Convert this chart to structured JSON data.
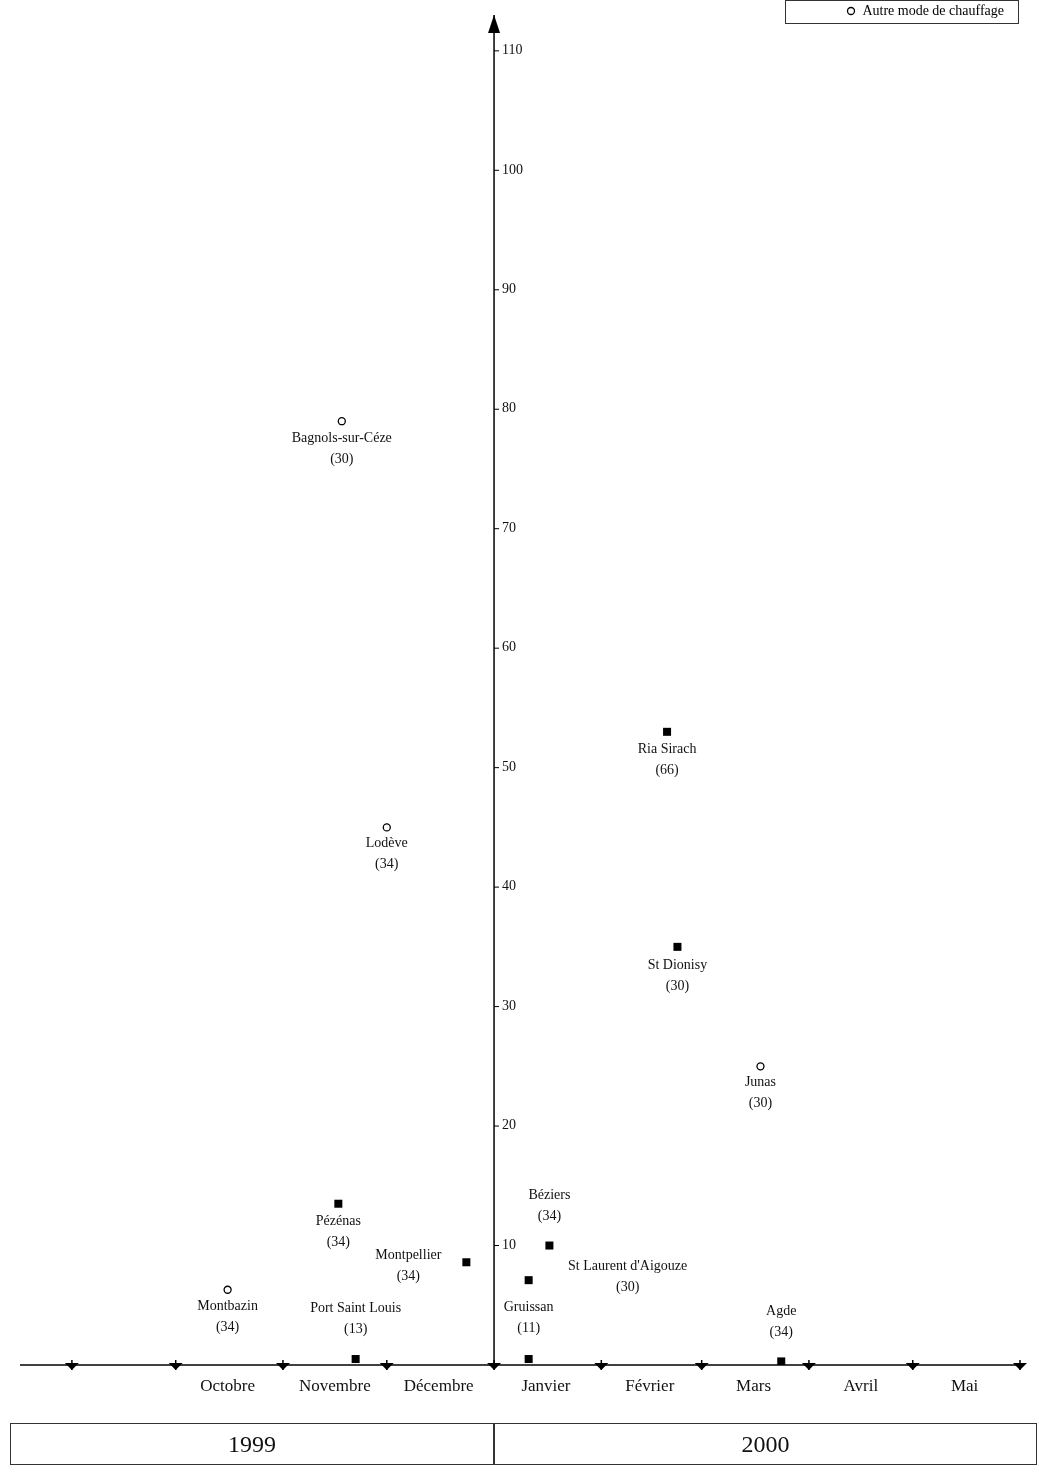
{
  "chart_data": {
    "type": "scatter",
    "xlim": [
      "1999-08-17",
      "2000-06-01"
    ],
    "xticks": [
      {
        "value": "1999-09-01",
        "label": null
      },
      {
        "value": "1999-10-01",
        "label": null
      },
      {
        "value": "1999-10-16",
        "label": "Octobre"
      },
      {
        "value": "1999-11-01",
        "label": null
      },
      {
        "value": "1999-11-16",
        "label": "Novembre"
      },
      {
        "value": "1999-12-01",
        "label": null
      },
      {
        "value": "1999-12-16",
        "label": "Décembre"
      },
      {
        "value": "2000-01-01",
        "label": null
      },
      {
        "value": "2000-01-16",
        "label": "Janvier"
      },
      {
        "value": "2000-02-01",
        "label": null
      },
      {
        "value": "2000-02-15",
        "label": "Février"
      },
      {
        "value": "2000-03-01",
        "label": null
      },
      {
        "value": "2000-03-16",
        "label": "Mars"
      },
      {
        "value": "2000-04-01",
        "label": null
      },
      {
        "value": "2000-04-16",
        "label": "Avril"
      },
      {
        "value": "2000-05-01",
        "label": null
      },
      {
        "value": "2000-05-16",
        "label": "Mai"
      },
      {
        "value": "2000-06-01",
        "label": null
      }
    ],
    "ylim": [
      0,
      113
    ],
    "yticks": [
      10,
      20,
      30,
      40,
      50,
      60,
      70,
      80,
      90,
      100,
      110
    ],
    "grid": false,
    "legend": "top right",
    "series": [
      {
        "marker": "square",
        "color": "#000000",
        "x": [
          "1999-11-17",
          "1999-12-24",
          "1999-11-22",
          "2000-01-17",
          "2000-01-11",
          "2000-01-11",
          "2000-02-20",
          "2000-02-23",
          "2000-03-24"
        ],
        "values": [
          13.5,
          8.6,
          0.5,
          10,
          7.1,
          0.5,
          53,
          35,
          0.3
        ]
      },
      {
        "name": "Autre mode de chauffage",
        "marker": "circle",
        "color": "#000000",
        "x": [
          "1999-10-16",
          "1999-11-18",
          "1999-12-01",
          "2000-03-18"
        ],
        "values": [
          6.3,
          79,
          45,
          25
        ]
      }
    ],
    "annotations": [
      {
        "text": "Pézénas\n(34)",
        "x": "1999-11-17",
        "y": 13.5
      },
      {
        "text": "Montpellier\n(34)",
        "x": "1999-12-24",
        "y": 8.6
      },
      {
        "text": "Port Saint Louis\n(13)",
        "x": "1999-11-22",
        "y": 0.5
      },
      {
        "text": "Béziers\n(34)",
        "x": "2000-01-17",
        "y": 10
      },
      {
        "text": "St Laurent d'Aigouze\n(30)",
        "x": "2000-01-11",
        "y": 7.1
      },
      {
        "text": "Gruissan\n(11)",
        "x": "2000-01-11",
        "y": 0.5
      },
      {
        "text": "Ria Sirach\n(66)",
        "x": "2000-02-20",
        "y": 53
      },
      {
        "text": "St Dionisy\n(30)",
        "x": "2000-02-23",
        "y": 35
      },
      {
        "text": "Agde\n(34)",
        "x": "2000-03-24",
        "y": 0.3
      },
      {
        "text": "Montbazin\n(34)",
        "x": "1999-10-16",
        "y": 6.3
      },
      {
        "text": "Bagnols-sur-Céze\n(30)",
        "x": "1999-11-18",
        "y": 79
      },
      {
        "text": "Lodève\n(34)",
        "x": "1999-12-01",
        "y": 45
      },
      {
        "text": "Junas\n(30)",
        "x": "2000-03-18",
        "y": 25
      },
      "1999",
      "2000"
    ]
  }
}
